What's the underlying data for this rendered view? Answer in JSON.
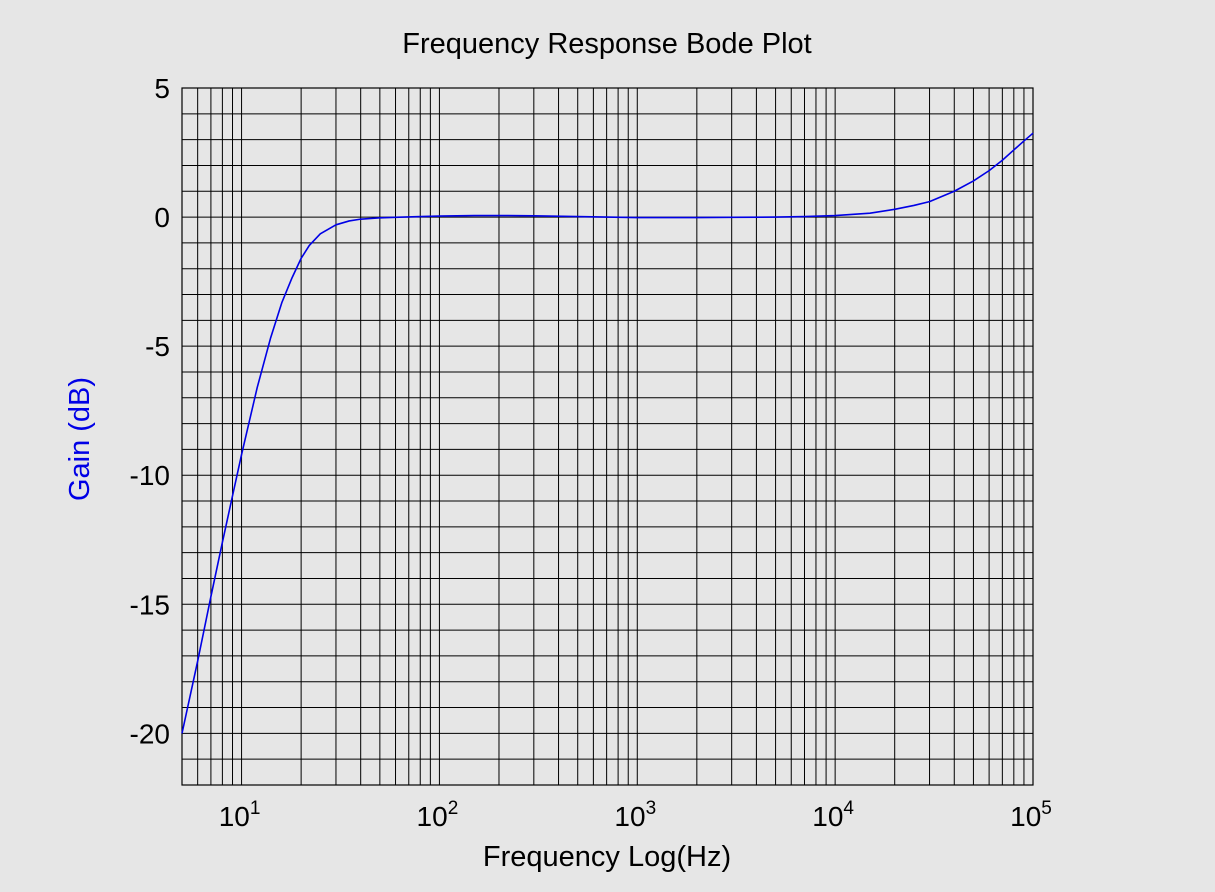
{
  "chart_data": {
    "type": "line",
    "title": "Frequency Response Bode Plot",
    "xlabel": "Frequency Log(Hz)",
    "ylabel": "Gain (dB)",
    "x_scale": "log",
    "xlim": [
      5,
      100000
    ],
    "ylim": [
      -22,
      5
    ],
    "grid": true,
    "x_ticks": [
      {
        "base": "10",
        "exp": "1",
        "value": 10
      },
      {
        "base": "10",
        "exp": "2",
        "value": 100
      },
      {
        "base": "10",
        "exp": "3",
        "value": 1000
      },
      {
        "base": "10",
        "exp": "4",
        "value": 10000
      },
      {
        "base": "10",
        "exp": "5",
        "value": 100000
      }
    ],
    "y_ticks": [
      {
        "label": "5",
        "value": 5
      },
      {
        "label": "0",
        "value": 0
      },
      {
        "label": "-5",
        "value": -5
      },
      {
        "label": "-10",
        "value": -10
      },
      {
        "label": "-15",
        "value": -15
      },
      {
        "label": "-20",
        "value": -20
      }
    ],
    "series": [
      {
        "color": "#0000e6",
        "x": [
          5,
          6,
          7,
          8,
          9,
          10,
          12,
          14,
          16,
          18,
          20,
          22,
          25,
          30,
          35,
          40,
          50,
          60,
          80,
          100,
          150,
          200,
          300,
          500,
          700,
          1000,
          2000,
          3000,
          5000,
          7000,
          10000,
          15000,
          20000,
          25000,
          30000,
          40000,
          50000,
          60000,
          70000,
          80000,
          90000,
          100000
        ],
        "y": [
          -20.0,
          -17.2,
          -14.7,
          -12.6,
          -10.8,
          -9.2,
          -6.6,
          -4.7,
          -3.3,
          -2.35,
          -1.6,
          -1.1,
          -0.65,
          -0.3,
          -0.15,
          -0.08,
          -0.03,
          -0.01,
          0.02,
          0.04,
          0.06,
          0.06,
          0.05,
          0.02,
          0.0,
          -0.02,
          -0.02,
          -0.01,
          0.0,
          0.02,
          0.06,
          0.15,
          0.3,
          0.45,
          0.6,
          1.0,
          1.4,
          1.8,
          2.2,
          2.6,
          2.95,
          3.25
        ]
      }
    ]
  },
  "colors": {
    "background": "#e6e6e6",
    "grid": "#000000",
    "series": "#0000e6",
    "ylabel": "#0000e6"
  }
}
